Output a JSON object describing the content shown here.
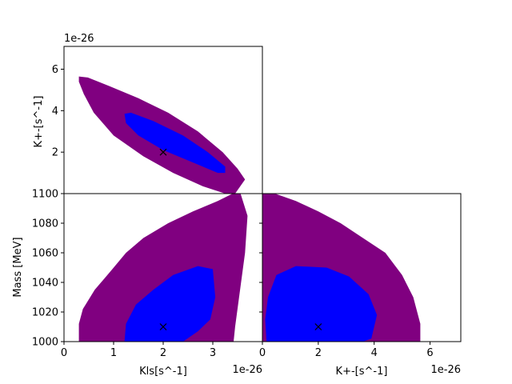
{
  "chart_data": [
    {
      "id": "top",
      "type": "contour",
      "xlabel": "",
      "ylabel": "K+-[s^-1]",
      "y_offset_label": "1e-26",
      "xlim": [
        0,
        4.0
      ],
      "ylim": [
        0,
        7.1
      ],
      "yticks": [
        0,
        2,
        4,
        6
      ],
      "yticklabels": [
        "",
        "2",
        "4",
        "6"
      ],
      "colors": {
        "outer": "#800080",
        "inner": "#0000ff"
      },
      "outer_region": [
        [
          0.3,
          5.65
        ],
        [
          0.48,
          5.6
        ],
        [
          0.9,
          5.2
        ],
        [
          1.5,
          4.6
        ],
        [
          2.1,
          3.9
        ],
        [
          2.7,
          3.0
        ],
        [
          3.2,
          2.0
        ],
        [
          3.5,
          1.2
        ],
        [
          3.65,
          0.68
        ],
        [
          3.45,
          0.0
        ],
        [
          3.25,
          0.0
        ],
        [
          2.8,
          0.35
        ],
        [
          2.2,
          1.0
        ],
        [
          1.6,
          1.8
        ],
        [
          1.0,
          2.8
        ],
        [
          0.6,
          3.9
        ],
        [
          0.4,
          4.8
        ],
        [
          0.3,
          5.4
        ]
      ],
      "inner_region": [
        [
          1.22,
          3.85
        ],
        [
          1.35,
          3.9
        ],
        [
          1.8,
          3.5
        ],
        [
          2.4,
          2.8
        ],
        [
          2.9,
          2.0
        ],
        [
          3.25,
          1.3
        ],
        [
          3.25,
          1.0
        ],
        [
          3.1,
          1.0
        ],
        [
          2.6,
          1.5
        ],
        [
          2.0,
          2.1
        ],
        [
          1.5,
          2.8
        ],
        [
          1.25,
          3.4
        ]
      ],
      "best_fit": {
        "x": 2.0,
        "y": 2.0
      }
    },
    {
      "id": "bottom-left",
      "type": "contour",
      "xlabel": "Kls[s^-1]",
      "ylabel": "Mass [MeV]",
      "x_offset_label": "1e-26",
      "xlim": [
        0,
        4.0
      ],
      "ylim": [
        1000,
        1100
      ],
      "xticks": [
        0,
        1,
        2,
        3
      ],
      "xticklabels": [
        "0",
        "1",
        "2",
        "3"
      ],
      "yticks": [
        1000,
        1020,
        1040,
        1060,
        1080,
        1100
      ],
      "yticklabels": [
        "1000",
        "1020",
        "1040",
        "1060",
        "1080",
        "1100"
      ],
      "colors": {
        "outer": "#800080",
        "inner": "#0000ff"
      },
      "outer_region": [
        [
          0.3,
          1000
        ],
        [
          0.3,
          1012
        ],
        [
          0.38,
          1022
        ],
        [
          0.62,
          1035
        ],
        [
          0.95,
          1048
        ],
        [
          1.25,
          1060
        ],
        [
          1.6,
          1070
        ],
        [
          2.1,
          1080
        ],
        [
          2.6,
          1088
        ],
        [
          3.1,
          1095
        ],
        [
          3.4,
          1100
        ],
        [
          3.56,
          1100
        ],
        [
          3.7,
          1085
        ],
        [
          3.65,
          1060
        ],
        [
          3.55,
          1035
        ],
        [
          3.45,
          1010
        ],
        [
          3.42,
          1000
        ]
      ],
      "inner_region": [
        [
          1.22,
          1000
        ],
        [
          1.25,
          1012
        ],
        [
          1.45,
          1025
        ],
        [
          1.8,
          1035
        ],
        [
          2.2,
          1045
        ],
        [
          2.7,
          1051
        ],
        [
          3.0,
          1049
        ],
        [
          3.05,
          1030
        ],
        [
          2.95,
          1015
        ],
        [
          2.7,
          1007
        ],
        [
          2.4,
          1000
        ]
      ],
      "best_fit": {
        "x": 2.0,
        "y": 1010
      }
    },
    {
      "id": "bottom-right",
      "type": "contour",
      "xlabel": "K+-[s^-1]",
      "ylabel": "",
      "x_offset_label": "1e-26",
      "xlim": [
        0,
        7.1
      ],
      "ylim": [
        1000,
        1100
      ],
      "xticks": [
        0,
        2,
        4,
        6
      ],
      "xticklabels": [
        "0",
        "2",
        "4",
        "6"
      ],
      "colors": {
        "outer": "#800080",
        "inner": "#0000ff"
      },
      "outer_region": [
        [
          0.0,
          1100
        ],
        [
          0.45,
          1100
        ],
        [
          1.2,
          1095
        ],
        [
          2.0,
          1088
        ],
        [
          2.8,
          1080
        ],
        [
          3.6,
          1070
        ],
        [
          4.4,
          1060
        ],
        [
          5.0,
          1045
        ],
        [
          5.4,
          1030
        ],
        [
          5.65,
          1012
        ],
        [
          5.65,
          1000
        ],
        [
          0.0,
          1000
        ]
      ],
      "inner_region": [
        [
          0.15,
          1000
        ],
        [
          0.1,
          1015
        ],
        [
          0.2,
          1030
        ],
        [
          0.5,
          1045
        ],
        [
          1.2,
          1051
        ],
        [
          2.3,
          1050
        ],
        [
          3.1,
          1044
        ],
        [
          3.8,
          1032
        ],
        [
          4.1,
          1018
        ],
        [
          3.9,
          1002
        ],
        [
          3.6,
          1000
        ]
      ],
      "best_fit": {
        "x": 2.0,
        "y": 1010
      }
    }
  ]
}
